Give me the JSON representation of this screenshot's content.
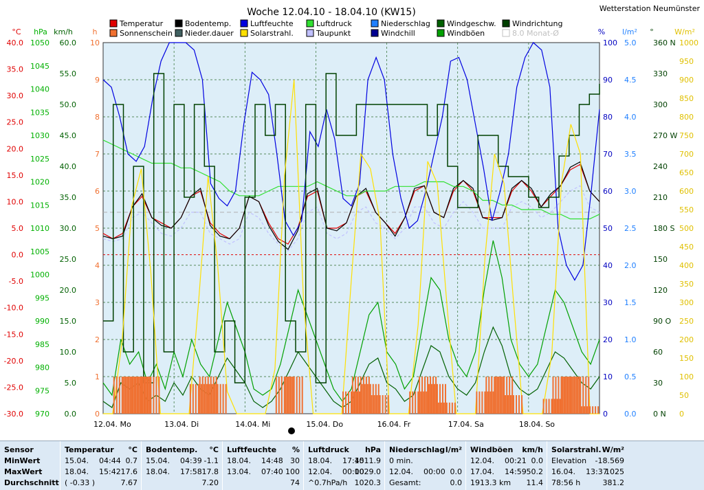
{
  "title": "Woche 12.04.10 - 18.04.10 (KW15)",
  "station": "Wetterstation Neumünster",
  "legend": [
    {
      "label": "Temperatur",
      "color": "#e00000"
    },
    {
      "label": "Sonnenschein",
      "color": "#f07030"
    },
    {
      "label": "Bodentemp.",
      "color": "#000000"
    },
    {
      "label": "Nieder.dauer",
      "color": "#406060"
    },
    {
      "label": "Luftfeuchte",
      "color": "#0000e0"
    },
    {
      "label": "Solarstrahl.",
      "color": "#ffe000"
    },
    {
      "label": "Luftdruck",
      "color": "#30e030"
    },
    {
      "label": "Taupunkt",
      "color": "#c0c0ff"
    },
    {
      "label": "Niederschlag",
      "color": "#2080ff"
    },
    {
      "label": "Windchill",
      "color": "#000090"
    },
    {
      "label": "Windgeschw.",
      "color": "#006000"
    },
    {
      "label": "Windböen",
      "color": "#00a000"
    },
    {
      "label": "Windrichtung",
      "color": "#004000"
    },
    {
      "label": "8.0 Monat-Ø",
      "color": "#c0c0c0"
    }
  ],
  "units": {
    "celsius": "°C",
    "hpa": "hPa",
    "kmh": "km/h",
    "h": "h",
    "percent": "%",
    "lm2": "l/m²",
    "deg": "°",
    "wm2": "W/m²"
  },
  "chart_data": {
    "type": "line",
    "x_labels": [
      "12.04. Mo",
      "13.04. Di",
      "14.04. Mi",
      "15.04. Do",
      "16.04. Fr",
      "17.04. Sa",
      "18.04. So"
    ],
    "axes": {
      "temperature_c": {
        "ticks": [
          "40.0",
          "35.0",
          "30.0",
          "25.0",
          "20.0",
          "15.0",
          "10.0",
          "5.0",
          "0.0",
          "-5.0",
          "-10.0",
          "-15.0",
          "-20.0",
          "-25.0",
          "-30.0"
        ],
        "color": "#e00000",
        "range": [
          -30,
          40
        ]
      },
      "pressure_hpa": {
        "ticks": [
          "1050",
          "1045",
          "1040",
          "1035",
          "1030",
          "1025",
          "1020",
          "1015",
          "1010",
          "1005",
          "1000",
          "995",
          "990",
          "985",
          "980",
          "975",
          "970"
        ],
        "color": "#00b000",
        "range": [
          970,
          1050
        ]
      },
      "wind_kmh": {
        "ticks": [
          "60.0",
          "55.0",
          "50.0",
          "45.0",
          "40.0",
          "35.0",
          "30.0",
          "25.0",
          "20.0",
          "15.0",
          "10.0",
          "5.0",
          "0.0"
        ],
        "color": "#006000",
        "range": [
          0,
          60
        ]
      },
      "sunshine_h": {
        "ticks": [
          "10",
          "9",
          "8",
          "7",
          "6",
          "5",
          "4",
          "3",
          "2",
          "1",
          "0"
        ],
        "color": "#f07030",
        "range": [
          0,
          10
        ]
      },
      "humidity_pct": {
        "ticks": [
          "100",
          "90",
          "80",
          "70",
          "60",
          "50",
          "40",
          "30",
          "20",
          "10",
          "0"
        ],
        "color": "#0000c0",
        "range": [
          0,
          100
        ]
      },
      "rain_lm2": {
        "ticks": [
          "5.0",
          "4.5",
          "4.0",
          "3.5",
          "3.0",
          "2.5",
          "2.0",
          "1.5",
          "1.0",
          "0.5",
          "0.0"
        ],
        "color": "#2080ff",
        "range": [
          0,
          5
        ]
      },
      "direction_deg": {
        "ticks": [
          "360 N",
          "330",
          "300",
          "270 W",
          "240",
          "210",
          "180 S",
          "150",
          "120",
          "90 O",
          "60",
          "30",
          "0 N"
        ],
        "color": "#004000",
        "range": [
          0,
          360
        ]
      },
      "solar_wm2": {
        "ticks": [
          "1000",
          "950",
          "900",
          "850",
          "800",
          "750",
          "700",
          "650",
          "600",
          "550",
          "500",
          "450",
          "400",
          "350",
          "300",
          "250",
          "200",
          "150",
          "100",
          "50",
          "0"
        ],
        "color": "#e0c000",
        "range": [
          0,
          1000
        ]
      }
    },
    "series": [
      {
        "name": "Temperatur",
        "unit": "°C",
        "color": "#e00000",
        "values": [
          4,
          3,
          4,
          9,
          11,
          7,
          6,
          5,
          7,
          11,
          12,
          6,
          4,
          3,
          5,
          11,
          10,
          6,
          3,
          2,
          5,
          11,
          12,
          5,
          5,
          6,
          11,
          12,
          8,
          6,
          4,
          7,
          12,
          13,
          8,
          7,
          12,
          14,
          12,
          7,
          7,
          7,
          12,
          14,
          12,
          9,
          11,
          13,
          16,
          17,
          12,
          10
        ]
      },
      {
        "name": "Bodentemp.",
        "unit": "°C",
        "color": "#000000",
        "values": [
          3.5,
          3,
          3.5,
          9,
          11.5,
          7,
          5.5,
          5,
          7,
          11,
          12.5,
          5.5,
          3.5,
          3,
          5,
          11,
          10,
          5.5,
          2.5,
          1,
          4.5,
          11.5,
          12.5,
          5,
          4.5,
          6,
          11,
          12.5,
          8,
          6,
          3.5,
          7,
          12.5,
          13,
          8,
          7,
          12.5,
          14,
          12.5,
          7,
          6.5,
          7,
          12.5,
          14,
          12.5,
          9,
          11.5,
          13,
          16.5,
          17.5,
          12,
          10
        ]
      },
      {
        "name": "Taupunkt",
        "unit": "°C",
        "color": "#c0c0ff",
        "values": [
          3,
          2.5,
          3,
          7,
          8,
          6,
          4,
          3.5,
          5,
          8,
          8,
          4,
          3,
          2,
          3,
          8,
          7,
          4,
          2,
          0.7,
          3,
          8,
          9,
          4,
          3,
          4,
          8,
          9,
          6,
          5,
          3,
          5,
          9,
          9,
          6,
          5,
          8,
          10,
          8,
          5,
          5,
          5,
          9,
          10,
          9,
          7,
          8,
          10,
          12,
          13,
          9,
          8
        ]
      },
      {
        "name": "Luftdruck",
        "unit": "hPa",
        "color": "#30e030",
        "values": [
          1029,
          1028,
          1027,
          1026,
          1025,
          1024,
          1024,
          1024,
          1023,
          1023,
          1022,
          1021,
          1020,
          1018,
          1017,
          1017,
          1017,
          1018,
          1019,
          1019,
          1019,
          1019,
          1020,
          1019,
          1018,
          1017,
          1017,
          1018,
          1018,
          1018,
          1019,
          1019,
          1019,
          1020,
          1020,
          1020,
          1019,
          1019,
          1018,
          1016,
          1016,
          1015,
          1015,
          1014,
          1014,
          1014,
          1013,
          1013,
          1012,
          1012,
          1012,
          1013
        ]
      },
      {
        "name": "Luftfeuchte",
        "unit": "%",
        "color": "#0000e0",
        "values": [
          90,
          88,
          80,
          70,
          68,
          72,
          85,
          95,
          100,
          100,
          100,
          98,
          90,
          62,
          58,
          56,
          60,
          78,
          92,
          90,
          86,
          70,
          52,
          48,
          52,
          76,
          72,
          82,
          74,
          58,
          56,
          62,
          90,
          96,
          90,
          70,
          58,
          50,
          52,
          60,
          70,
          80,
          95,
          96,
          90,
          78,
          66,
          52,
          60,
          70,
          88,
          96,
          100,
          98,
          88,
          50,
          40,
          36,
          40,
          60,
          82
        ]
      },
      {
        "name": "Windböen",
        "unit": "km/h",
        "color": "#00a000",
        "values": [
          5,
          3,
          12,
          8,
          10,
          5,
          8,
          4,
          10,
          6,
          12,
          8,
          6,
          12,
          18,
          14,
          10,
          4,
          3,
          4,
          8,
          14,
          20,
          16,
          12,
          8,
          4,
          2,
          4,
          10,
          16,
          18,
          10,
          8,
          4,
          6,
          14,
          22,
          20,
          12,
          8,
          6,
          10,
          20,
          28,
          22,
          12,
          8,
          6,
          8,
          14,
          20,
          18,
          14,
          10,
          8,
          12
        ]
      },
      {
        "name": "Windgeschw.",
        "unit": "km/h",
        "color": "#006000",
        "values": [
          2,
          1,
          5,
          4,
          5,
          2,
          3,
          2,
          5,
          3,
          6,
          4,
          3,
          6,
          9,
          7,
          5,
          2,
          1,
          2,
          4,
          7,
          10,
          8,
          6,
          4,
          2,
          1,
          2,
          5,
          8,
          9,
          5,
          4,
          2,
          3,
          7,
          11,
          10,
          6,
          4,
          3,
          5,
          10,
          14,
          11,
          6,
          4,
          3,
          4,
          7,
          10,
          9,
          7,
          5,
          4,
          6
        ]
      },
      {
        "name": "Windrichtung",
        "unit": "°",
        "color": "#004000",
        "values": [
          90,
          300,
          60,
          240,
          30,
          330,
          60,
          300,
          210,
          300,
          240,
          60,
          90,
          30,
          210,
          300,
          270,
          300,
          90,
          60,
          300,
          30,
          330,
          270,
          270,
          300,
          300,
          300,
          300,
          300,
          300,
          300,
          270,
          300,
          240,
          200,
          200,
          270,
          270,
          240,
          230,
          230,
          210,
          200,
          210,
          250,
          270,
          300,
          310,
          320
        ]
      },
      {
        "name": "Solarstrahl.",
        "unit": "W/m²",
        "color": "#ffe000",
        "values": [
          0,
          0,
          200,
          560,
          660,
          380,
          0,
          0,
          0,
          0,
          300,
          640,
          400,
          60,
          0,
          0,
          0,
          0,
          120,
          640,
          900,
          300,
          0,
          0,
          0,
          0,
          360,
          700,
          660,
          520,
          0,
          0,
          0,
          240,
          680,
          620,
          300,
          0,
          0,
          0,
          420,
          700,
          620,
          300,
          0,
          0,
          0,
          160,
          620,
          780,
          700,
          0,
          0
        ]
      },
      {
        "name": "Sonnenschein",
        "unit": "h",
        "color": "#f07030",
        "values": [
          0,
          0,
          1,
          1,
          1,
          1,
          0,
          0,
          0,
          0,
          0.8,
          1,
          0.8,
          0,
          0,
          0,
          0,
          0,
          0,
          1,
          1,
          0,
          0,
          0,
          0,
          0,
          0.6,
          1,
          0.8,
          0.5,
          0,
          0,
          0,
          0.6,
          1,
          0.8,
          0.3,
          0,
          0,
          0,
          0.6,
          1,
          1,
          0.5,
          0,
          0,
          0,
          0.4,
          1,
          1,
          1,
          0.2,
          0
        ]
      }
    ]
  },
  "stats": {
    "panels": [
      {
        "title": "Sensor",
        "unit": "",
        "rows": [
          [
            "MinWert",
            "",
            ""
          ],
          [
            "MaxWert",
            "",
            ""
          ],
          [
            "Durchschnitt",
            "",
            ""
          ]
        ]
      },
      {
        "title": "Temperatur",
        "unit": "°C",
        "rows": [
          [
            "15.04.",
            "04:44",
            "0.7"
          ],
          [
            "18.04.",
            "15:42",
            "17.6"
          ],
          [
            "( -0.33 )",
            "",
            "7.67"
          ]
        ]
      },
      {
        "title": "Bodentemp.",
        "unit": "°C",
        "rows": [
          [
            "15.04.",
            "04:39",
            "-1.1"
          ],
          [
            "18.04.",
            "17:58",
            "17.8"
          ],
          [
            "",
            "",
            "7.20"
          ]
        ]
      },
      {
        "title": "Luftfeuchte",
        "unit": "%",
        "rows": [
          [
            "18.04.",
            "14:48",
            "30"
          ],
          [
            "13.04.",
            "07:40",
            "100"
          ],
          [
            "",
            "",
            "74"
          ]
        ]
      },
      {
        "title": "Luftdruck",
        "unit": "hPa",
        "rows": [
          [
            "18.04.",
            "17:45",
            "1011.9"
          ],
          [
            "12.04.",
            "00:00",
            "1029.0"
          ],
          [
            "^0.7hPa/h",
            "",
            "1020.3"
          ]
        ]
      },
      {
        "title": "Niederschlag",
        "unit": "l/m²",
        "rows": [
          [
            "0 min.",
            "",
            ""
          ],
          [
            "12.04.",
            "00:00",
            "0.0"
          ],
          [
            "Gesamt:",
            "",
            "0.0"
          ]
        ]
      },
      {
        "title": "Windböen",
        "unit": "km/h",
        "rows": [
          [
            "12.04.",
            "00:21",
            "0.0"
          ],
          [
            "17.04.",
            "14:59",
            "50.2"
          ],
          [
            "1913.3 km",
            "",
            "11.4"
          ]
        ]
      },
      {
        "title": "Solarstrahl.",
        "unit": "W/m²",
        "rows": [
          [
            "Elevation",
            "",
            "-18.569"
          ],
          [
            "16.04.",
            "13:37",
            "1025"
          ],
          [
            "78:56 h",
            "",
            "381.2"
          ]
        ]
      }
    ]
  }
}
